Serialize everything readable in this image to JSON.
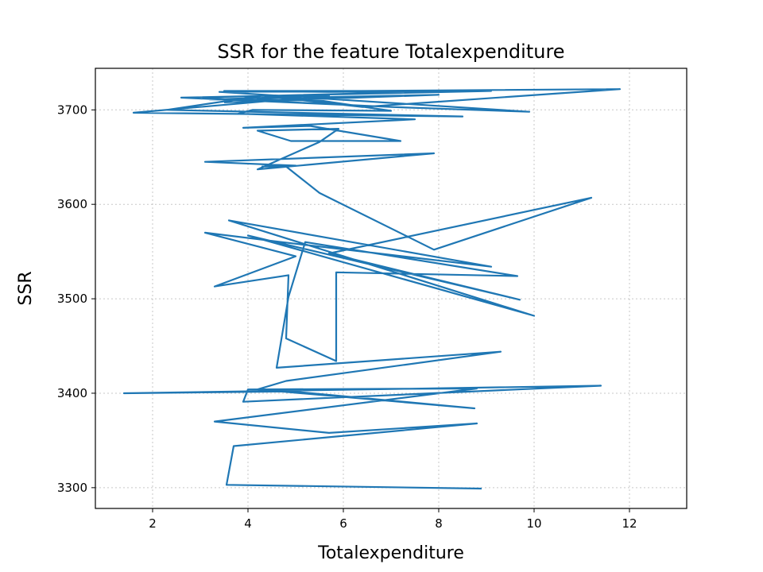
{
  "chart_data": {
    "type": "line",
    "title": "SSR for the feature Totalexpenditure",
    "xlabel": "Totalexpenditure",
    "ylabel": "SSR",
    "xlim": [
      0.8,
      13.2
    ],
    "ylim": [
      3278,
      3744
    ],
    "xticks": [
      2,
      4,
      6,
      8,
      10,
      12
    ],
    "yticks": [
      3300,
      3400,
      3500,
      3600,
      3700
    ],
    "grid": true,
    "color": "#1f77b4",
    "series": [
      {
        "x": [
          8.9,
          3.55,
          3.7,
          8.8,
          5.7,
          3.3,
          8.8,
          4.0,
          3.9,
          11.4,
          1.4,
          4.9,
          8.75,
          4.2,
          4.8,
          9.3,
          4.6,
          4.85,
          5.2,
          9.65,
          5.85,
          5.85,
          4.8,
          4.85,
          3.3,
          5.0,
          3.1,
          4.7,
          9.1,
          3.6,
          10.0,
          4.0,
          9.7,
          5.7,
          11.2,
          7.9,
          5.5,
          4.8,
          4.3,
          5.0,
          3.1,
          7.9,
          4.2,
          5.5,
          5.9,
          4.2,
          4.9,
          7.2,
          5.3,
          3.9,
          7.5,
          3.8,
          4.1,
          7.0,
          5.5,
          3.2,
          5.7,
          1.6,
          8.5,
          2.3,
          4.3,
          6.4,
          11.8,
          3.4,
          9.9,
          7.0,
          2.9,
          8.4,
          3.5,
          5.7,
          9.1,
          2.6,
          6.2,
          4.9,
          4.2,
          8.0,
          3.5
        ],
        "y": [
          3299,
          3303,
          3344,
          3368,
          3358,
          3370,
          3405,
          3404,
          3391,
          3408,
          3400,
          3402,
          3384,
          3404,
          3413,
          3444,
          3427,
          3502,
          3560,
          3524,
          3528,
          3434,
          3458,
          3525,
          3513,
          3545,
          3570,
          3560,
          3534,
          3583,
          3482,
          3567,
          3499,
          3548,
          3607,
          3552,
          3612,
          3640,
          3640,
          3641,
          3645,
          3654,
          3637,
          3666,
          3680,
          3678,
          3667,
          3667,
          3683,
          3681,
          3690,
          3696,
          3700,
          3699,
          3710,
          3711,
          3715,
          3697,
          3693,
          3700,
          3715,
          3703,
          3722,
          3719,
          3698,
          3703,
          3713,
          3720,
          3720,
          3719,
          3720,
          3713,
          3705,
          3708,
          3712,
          3716,
          3708
        ]
      }
    ]
  }
}
